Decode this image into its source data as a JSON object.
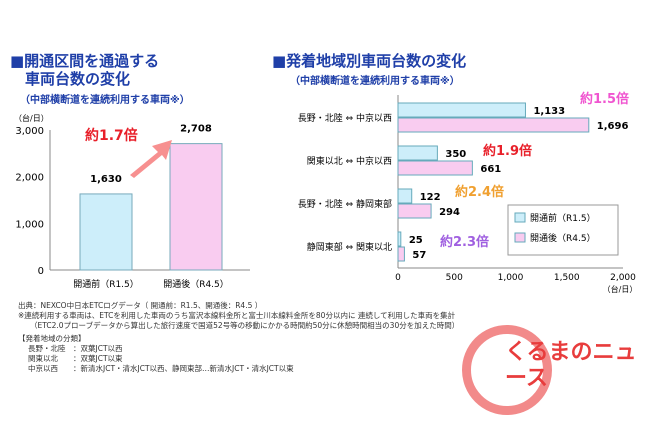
{
  "left_title": [
    "■開通区間を通過する",
    "車両台数の変化"
  ],
  "left_subtitle": "（中部横断道を連続利用する車両※）",
  "right_title": "■発着地域別車両台数の変化",
  "right_subtitle": "（中部横断道を連続利用する車両※）",
  "chart_data": [
    {
      "type": "bar",
      "title": "開通区間を通過する車両台数の変化",
      "ylabel": "（台/日）",
      "ylim": [
        0,
        3000
      ],
      "yticks": [
        "0",
        "1,000",
        "2,000",
        "3,000"
      ],
      "categories": [
        "開通前（R1.5）",
        "開通後（R4.5）"
      ],
      "values": [
        1630,
        2708
      ],
      "value_labels": [
        "1,630",
        "2,708"
      ],
      "annotation": "約1.7倍",
      "colors": [
        "#cdeefa",
        "#f9ccf0"
      ]
    },
    {
      "type": "bar",
      "orientation": "horizontal",
      "title": "発着地域別車両台数の変化",
      "xlabel": "（台/日）",
      "xlim": [
        0,
        2000
      ],
      "xticks": [
        "0",
        "500",
        "1,000",
        "1,500",
        "2,000"
      ],
      "categories": [
        "長野・北陸 ⇔ 中京以西",
        "関東以北 ⇔ 中京以西",
        "長野・北陸 ⇔ 静岡東部",
        "静岡東部 ⇔ 関東以北"
      ],
      "series": [
        {
          "name": "開通前（R1.5）",
          "values": [
            1133,
            350,
            122,
            25
          ],
          "labels": [
            "1,133",
            "350",
            "122",
            "25"
          ],
          "color": "#cdeefa"
        },
        {
          "name": "開通後（R4.5）",
          "values": [
            1696,
            661,
            294,
            57
          ],
          "labels": [
            "1,696",
            "661",
            "294",
            "57"
          ],
          "color": "#f9ccf0"
        }
      ],
      "annotations": [
        {
          "text": "約1.5倍",
          "color": "#f055d0"
        },
        {
          "text": "約1.9倍",
          "color": "#e8202a"
        },
        {
          "text": "約2.4倍",
          "color": "#f0a030"
        },
        {
          "text": "約2.3倍",
          "color": "#a060e0"
        }
      ],
      "legend": "right"
    }
  ],
  "notes": [
    "出典：NEXCO中日本ETCログデータ（ 開通前：R1.5、開通後：R4.5 ）",
    "※連続利用する車両は、ETCを利用した車両のうち富沢本線料金所と富士川本線料金所を80分以内に 連続して利用した車両を集計",
    "（ETC2.0プローブデータから算出した旅行速度で国道52号等の移動にかかる時間約50分に休憩時間相当の30分を加えた時間）",
    "【発着地域の分類】",
    "長野・北陸　：双葉JCT以西",
    "関東以北　　：双葉JCT以東",
    "中京以西　　：新清水JCT・清水JCT以西、静岡東部…新清水JCT・清水JCT以東"
  ],
  "logo": "くるまのニュース"
}
